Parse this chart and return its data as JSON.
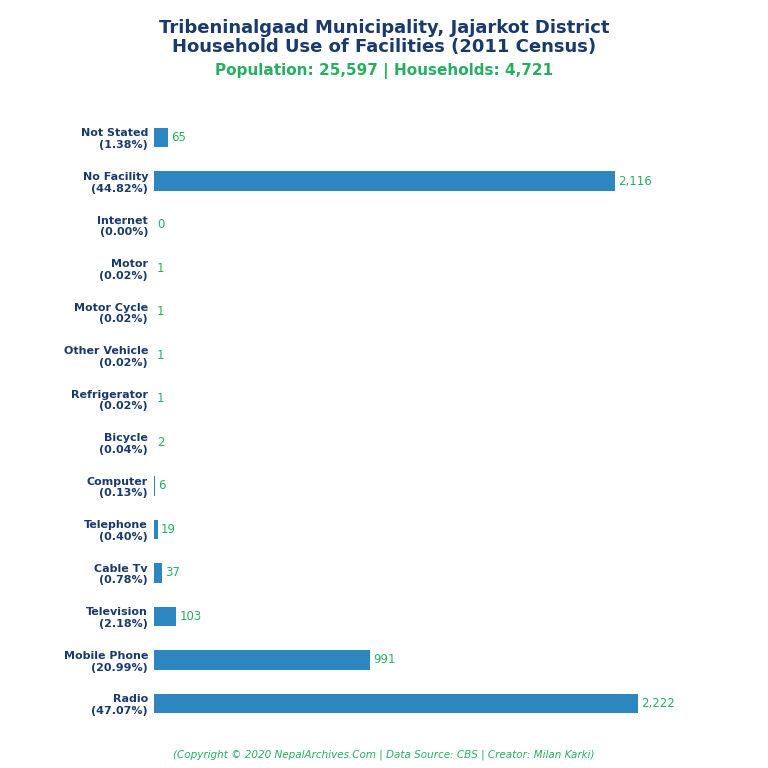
{
  "title_line1": "Tribeninalgaad Municipality, Jajarkot District",
  "title_line2": "Household Use of Facilities (2011 Census)",
  "subtitle": "Population: 25,597 | Households: 4,721",
  "footer": "(Copyright © 2020 NepalArchives.Com | Data Source: CBS | Creator: Milan Karki)",
  "categories": [
    "Radio\n(47.07%)",
    "Mobile Phone\n(20.99%)",
    "Television\n(2.18%)",
    "Cable Tv\n(0.78%)",
    "Telephone\n(0.40%)",
    "Computer\n(0.13%)",
    "Bicycle\n(0.04%)",
    "Refrigerator\n(0.02%)",
    "Other Vehicle\n(0.02%)",
    "Motor Cycle\n(0.02%)",
    "Motor\n(0.02%)",
    "Internet\n(0.00%)",
    "No Facility\n(44.82%)",
    "Not Stated\n(1.38%)"
  ],
  "values": [
    2222,
    991,
    103,
    37,
    19,
    6,
    2,
    1,
    1,
    1,
    1,
    0,
    2116,
    65
  ],
  "value_labels": [
    "2,222",
    "991",
    "103",
    "37",
    "19",
    "6",
    "2",
    "1",
    "1",
    "1",
    "1",
    "0",
    "2,116",
    "65"
  ],
  "bar_color": "#2e86c1",
  "value_color": "#27ae60",
  "title_color": "#1a3a6b",
  "subtitle_color": "#27ae60",
  "footer_color": "#27ae60",
  "background_color": "#ffffff",
  "xlim": [
    0,
    2500
  ]
}
